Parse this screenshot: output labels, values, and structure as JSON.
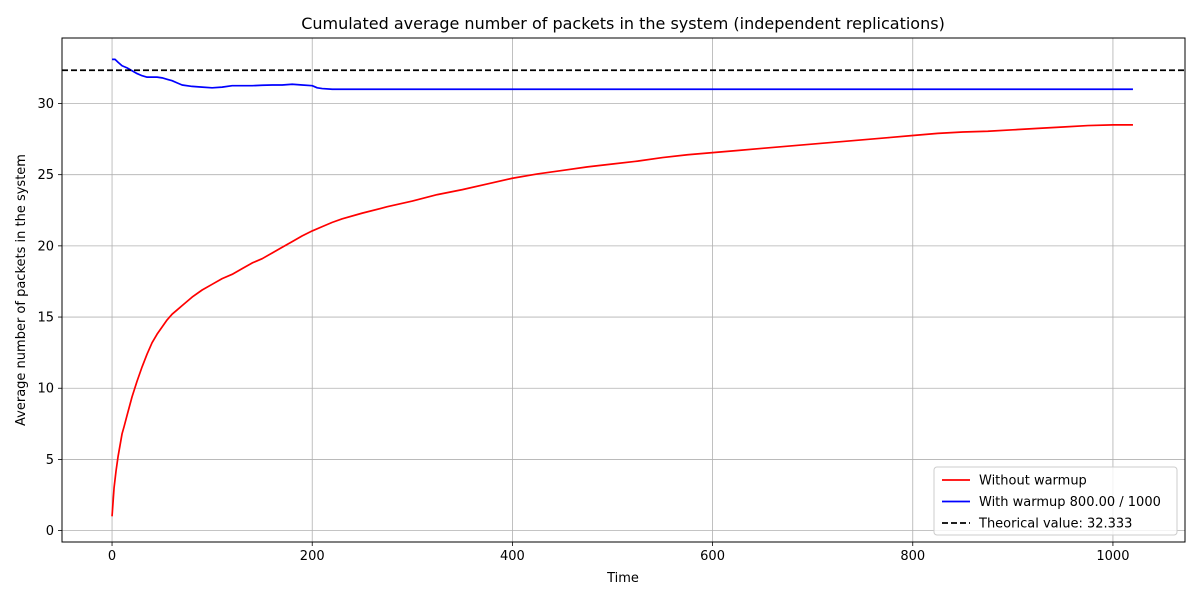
{
  "chart_data": {
    "type": "line",
    "title": "Cumulated average number of packets in the system (independent replications)",
    "xlabel": "Time",
    "ylabel": "Average number of packets in the system",
    "xlim": [
      -50,
      1072
    ],
    "ylim": [
      -0.8,
      34.6
    ],
    "xticks": [
      0,
      200,
      400,
      600,
      800,
      1000
    ],
    "xtick_labels": [
      "0",
      "200",
      "400",
      "600",
      "800",
      "1000"
    ],
    "yticks": [
      0,
      5,
      10,
      15,
      20,
      25,
      30
    ],
    "ytick_labels": [
      "0",
      "5",
      "10",
      "15",
      "20",
      "25",
      "30"
    ],
    "grid": true,
    "legend_position": "lower-right",
    "series": [
      {
        "name": "Without warmup",
        "color": "#ff0000",
        "style": "solid",
        "x": [
          0,
          2,
          4,
          6,
          8,
          10,
          12,
          15,
          20,
          25,
          30,
          35,
          40,
          45,
          50,
          55,
          60,
          65,
          70,
          80,
          90,
          100,
          110,
          120,
          130,
          140,
          150,
          160,
          170,
          180,
          190,
          200,
          210,
          220,
          230,
          250,
          275,
          300,
          325,
          350,
          375,
          400,
          425,
          450,
          475,
          500,
          525,
          550,
          575,
          600,
          625,
          650,
          675,
          700,
          725,
          750,
          775,
          800,
          825,
          850,
          875,
          900,
          925,
          950,
          975,
          1000,
          1020
        ],
        "values": [
          1.0,
          3.0,
          4.2,
          5.2,
          6.0,
          6.8,
          7.3,
          8.1,
          9.4,
          10.5,
          11.5,
          12.4,
          13.2,
          13.8,
          14.3,
          14.8,
          15.2,
          15.5,
          15.8,
          16.4,
          16.9,
          17.3,
          17.7,
          18.0,
          18.4,
          18.8,
          19.1,
          19.5,
          19.9,
          20.3,
          20.7,
          21.05,
          21.35,
          21.65,
          21.9,
          22.3,
          22.75,
          23.15,
          23.6,
          23.95,
          24.35,
          24.75,
          25.05,
          25.3,
          25.55,
          25.75,
          25.95,
          26.2,
          26.4,
          26.55,
          26.7,
          26.85,
          27.0,
          27.15,
          27.3,
          27.45,
          27.6,
          27.75,
          27.9,
          28.0,
          28.05,
          28.15,
          28.25,
          28.35,
          28.45,
          28.5,
          28.5
        ]
      },
      {
        "name": "With warmup 800.00 / 1000",
        "color": "#0000ff",
        "style": "solid",
        "x": [
          0,
          3,
          6,
          10,
          15,
          20,
          25,
          30,
          35,
          40,
          45,
          50,
          55,
          60,
          65,
          70,
          80,
          90,
          100,
          110,
          120,
          130,
          140,
          150,
          160,
          170,
          180,
          190,
          200,
          205,
          210,
          220,
          240,
          300,
          400,
          500,
          600,
          700,
          800,
          900,
          1000,
          1020
        ],
        "values": [
          33.1,
          33.1,
          32.9,
          32.65,
          32.5,
          32.3,
          32.1,
          31.95,
          31.85,
          31.85,
          31.85,
          31.8,
          31.7,
          31.6,
          31.45,
          31.3,
          31.2,
          31.15,
          31.1,
          31.15,
          31.25,
          31.25,
          31.25,
          31.28,
          31.3,
          31.3,
          31.35,
          31.3,
          31.25,
          31.1,
          31.05,
          31.0,
          31.0,
          31.0,
          31.0,
          31.0,
          31.0,
          31.0,
          31.0,
          31.0,
          31.0,
          31.0
        ]
      },
      {
        "name": "Theorical value: 32.333",
        "color": "#000000",
        "style": "dashed",
        "x": [
          -50,
          1072
        ],
        "values": [
          32.333,
          32.333
        ]
      }
    ]
  }
}
